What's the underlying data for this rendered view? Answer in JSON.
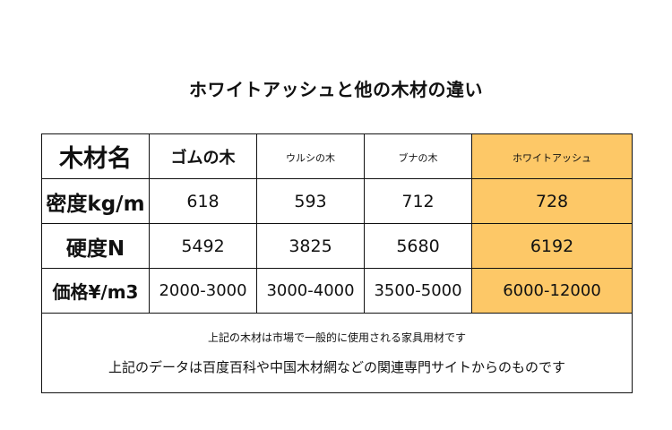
{
  "title": "ホワイトアッシュと他の木材の違い",
  "table": {
    "header": {
      "label": "木材名",
      "woods": [
        "ゴムの木",
        "ウルシの木",
        "ブナの木",
        "ホワイトアッシュ"
      ]
    },
    "rows": [
      {
        "label": "密度kg/m",
        "values": [
          "618",
          "593",
          "712",
          "728"
        ]
      },
      {
        "label": "硬度N",
        "values": [
          "5492",
          "3825",
          "5680",
          "6192"
        ]
      },
      {
        "label": "価格¥/m3",
        "values": [
          "2000-3000",
          "3000-4000",
          "3500-5000",
          "6000-12000"
        ]
      }
    ],
    "highlight_color": "#fdc867"
  },
  "notes": {
    "line1": "上記の木材は市場で一般的に使用される家具用材です",
    "line2": "上記のデータは百度百科や中国木材網などの関連専門サイトからのものです"
  }
}
